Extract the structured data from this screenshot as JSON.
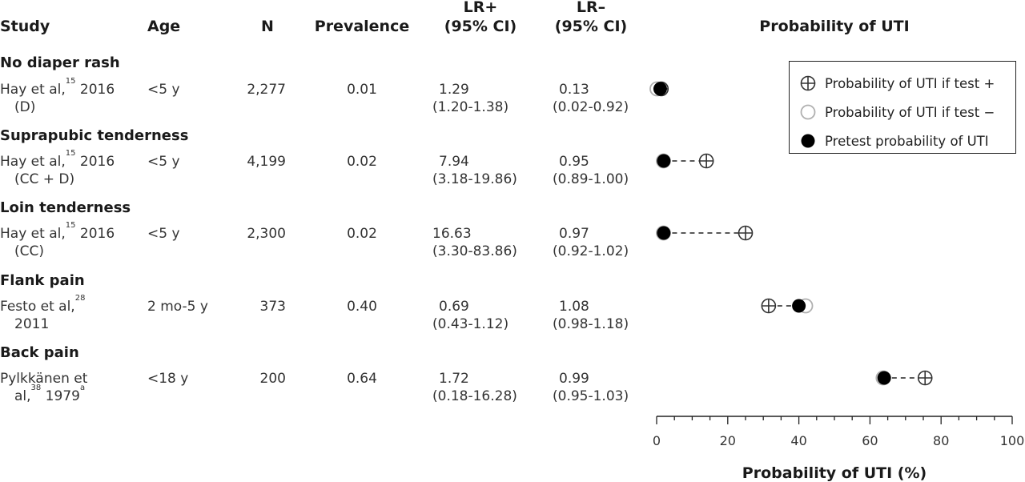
{
  "headers": {
    "study": "Study",
    "age": "Age",
    "n": "N",
    "prevalence": "Prevalence",
    "lr_pos_1": "LR+",
    "lr_pos_2": "(95% CI)",
    "lr_neg_1": "LR–",
    "lr_neg_2": "(95% CI)",
    "plot": "Probability of UTI"
  },
  "sections": [
    {
      "title": "No diaper rash",
      "study_pre": "Hay et al,",
      "study_ref": "15",
      "study_post": " 2016",
      "study_line2": "(D)",
      "age": "<5 y",
      "n": "2,277",
      "prevalence": "0.01",
      "lr_pos": "1.29",
      "lr_pos_ci": "(1.20-1.38)",
      "lr_neg": "0.13",
      "lr_neg_ci": "(0.02-0.92)"
    },
    {
      "title": "Suprapubic tenderness",
      "study_pre": "Hay et al,",
      "study_ref": "15",
      "study_post": " 2016",
      "study_line2": "(CC + D)",
      "age": "<5 y",
      "n": "4,199",
      "prevalence": "0.02",
      "lr_pos": "7.94",
      "lr_pos_ci": "(3.18-19.86)",
      "lr_neg": "0.95",
      "lr_neg_ci": "(0.89-1.00)"
    },
    {
      "title": "Loin tenderness",
      "study_pre": "Hay et al,",
      "study_ref": "15",
      "study_post": " 2016",
      "study_line2": "(CC)",
      "age": "<5 y",
      "n": "2,300",
      "prevalence": "0.02",
      "lr_pos": "16.63",
      "lr_pos_ci": "(3.30-83.86)",
      "lr_neg": "0.97",
      "lr_neg_ci": "(0.92-1.02)"
    },
    {
      "title": "Flank pain",
      "study_pre": "Festo et al,",
      "study_ref": "28",
      "study_post": "",
      "study_line2": "2011",
      "age": "2 mo-5 y",
      "n": "373",
      "prevalence": "0.40",
      "lr_pos": "0.69",
      "lr_pos_ci": "(0.43-1.12)",
      "lr_neg": "1.08",
      "lr_neg_ci": "(0.98-1.18)"
    },
    {
      "title": "Back pain",
      "study_pre": "Pylkkänen et",
      "study_ref": "",
      "study_post": "",
      "study_line2_pre": "al,",
      "study_line2_ref": "38",
      "study_line2_post": " 1979",
      "study_line2_note": "a",
      "age": "<18 y",
      "n": "200",
      "prevalence": "0.64",
      "lr_pos": "1.72",
      "lr_pos_ci": "(0.18-16.28)",
      "lr_neg": "0.99",
      "lr_neg_ci": "(0.95-1.03)"
    }
  ],
  "legend": {
    "pos": "Probability of UTI if test +",
    "neg": "Probability of UTI if test −",
    "pre": "Pretest probability of UTI"
  },
  "colors": {
    "pretest_fill": "#000000",
    "neg_stroke": "#b0b0b0",
    "pos_stroke": "#333333",
    "connector": "#222222"
  },
  "chart_data": {
    "type": "scatter",
    "xlabel": "Probability of UTI (%)",
    "xlim": [
      0,
      100
    ],
    "xticks": [
      0,
      20,
      40,
      60,
      80,
      100
    ],
    "series": [
      {
        "name": "Pretest probability of UTI",
        "values": [
          1,
          2,
          2,
          40,
          64
        ]
      },
      {
        "name": "Probability of UTI if test +",
        "values": [
          1.3,
          14,
          25,
          31.5,
          75.5
        ]
      },
      {
        "name": "Probability of UTI if test −",
        "values": [
          0.1,
          1.9,
          1.9,
          41.9,
          63.7
        ]
      }
    ],
    "categories": [
      "No diaper rash",
      "Suprapubic tenderness",
      "Loin tenderness",
      "Flank pain",
      "Back pain"
    ],
    "legend_position": "top-right",
    "grid": false
  }
}
